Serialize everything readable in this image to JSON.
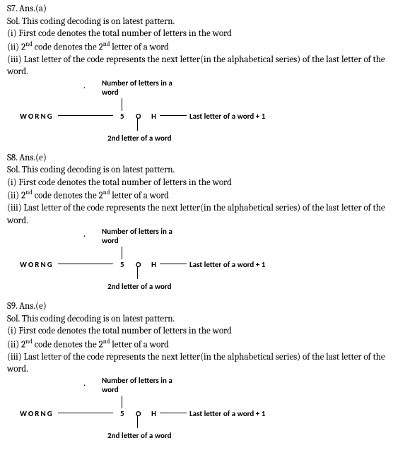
{
  "solutions": [
    {
      "id": "S7",
      "ans": "Ans.(a)"
    },
    {
      "id": "S8",
      "ans": "Ans.(e)"
    },
    {
      "id": "S9",
      "ans": "Ans.(e)"
    }
  ],
  "common": {
    "sol_intro": "Sol. This coding decoding is on latest pattern.",
    "rule1": "(i) First code denotes the total number of letters in the word",
    "rule2_a": "(ii) 2",
    "rule2_sup": "nd",
    "rule2_b": " code denotes the 2",
    "rule2_c": " letter of a word",
    "rule3": "(iii) Last letter of the code represents the next letter(in the alphabetical series) of the last letter of the word."
  },
  "diagram": {
    "top_label_l1": "Number of letters in a",
    "top_label_l2": "word",
    "word": "WORNG",
    "code_5": "5",
    "code_o": "O",
    "code_h": "H",
    "last_label": "Last letter of a word + 1",
    "bottom_label": "2nd letter of a word",
    "dot": "."
  }
}
